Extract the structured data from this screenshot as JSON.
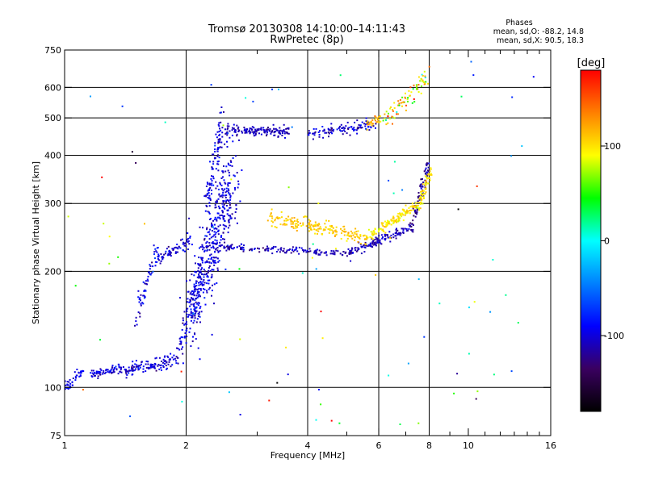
{
  "chart_data": {
    "type": "scatter",
    "title": "Tromsø 20130308 14:10:00–14:11:43",
    "subtitle": "RwPretec (8p)",
    "xlabel": "Frequency [MHz]",
    "ylabel": "Stationary phase Virtual Height [km]",
    "x_scale": "log",
    "y_scale": "log",
    "xlim": [
      1,
      16
    ],
    "ylim": [
      75,
      750
    ],
    "x_ticks": [
      1,
      2,
      4,
      6,
      8,
      10,
      16
    ],
    "x_tick_labels": [
      "1",
      "2",
      "4",
      "6",
      "8",
      "10",
      "16"
    ],
    "x_minor_ticks": [
      3,
      5,
      7,
      9,
      11,
      12,
      13,
      14,
      15
    ],
    "y_ticks": [
      75,
      100,
      200,
      300,
      400,
      500,
      600,
      750
    ],
    "y_tick_labels": [
      "75",
      "100",
      "200",
      "300",
      "400",
      "500",
      "600",
      "750"
    ],
    "x_grid": [
      2,
      4,
      6,
      8
    ],
    "y_grid": [
      100,
      200,
      300,
      400,
      500,
      600
    ],
    "grid": true,
    "phases": {
      "heading": "Phases",
      "line1": "mean, sd,O:  -88.2, 14.8",
      "line2": "mean, sd,X:  90.5, 18.3"
    },
    "colorbar": {
      "label": "[deg]",
      "min": -180,
      "max": 180,
      "ticks": [
        100,
        0,
        -100
      ],
      "tick_labels": [
        "100",
        "0",
        "-100"
      ],
      "colormap": [
        "#000000",
        "#3a0060",
        "#0000ff",
        "#0080ff",
        "#00ffff",
        "#00ff00",
        "#ffff00",
        "#ff8000",
        "#ff0000"
      ]
    },
    "point_size": 2,
    "traces": [
      {
        "x0": 1.0,
        "x1": 1.12,
        "y0": 100,
        "y1": 112,
        "n": 40,
        "spread": 0.02,
        "phase": -95,
        "phase_sd": 10
      },
      {
        "x0": 1.15,
        "x1": 1.4,
        "y0": 108,
        "y1": 112,
        "n": 70,
        "spread": 0.015,
        "phase": -100,
        "phase_sd": 12
      },
      {
        "x0": 1.4,
        "x1": 1.9,
        "y0": 110,
        "y1": 117,
        "n": 120,
        "spread": 0.02,
        "phase": -100,
        "phase_sd": 12
      },
      {
        "x0": 1.5,
        "x1": 1.7,
        "y0": 150,
        "y1": 230,
        "n": 60,
        "spread": 0.03,
        "phase": -95,
        "phase_sd": 12
      },
      {
        "x0": 1.7,
        "x1": 2.05,
        "y0": 215,
        "y1": 240,
        "n": 70,
        "spread": 0.02,
        "phase": -100,
        "phase_sd": 12
      },
      {
        "x0": 1.9,
        "x1": 2.2,
        "y0": 117,
        "y1": 200,
        "n": 100,
        "spread": 0.05,
        "phase": -100,
        "phase_sd": 12
      },
      {
        "x0": 2.05,
        "x1": 2.6,
        "y0": 150,
        "y1": 360,
        "n": 450,
        "spread": 0.11,
        "phase": -100,
        "phase_sd": 12
      },
      {
        "x0": 2.25,
        "x1": 2.45,
        "y0": 300,
        "y1": 480,
        "n": 100,
        "spread": 0.05,
        "phase": -100,
        "phase_sd": 12
      },
      {
        "x0": 2.5,
        "x1": 3.6,
        "y0": 465,
        "y1": 460,
        "n": 150,
        "spread": 0.015,
        "phase": -110,
        "phase_sd": 8
      },
      {
        "x0": 4.0,
        "x1": 5.9,
        "y0": 455,
        "y1": 480,
        "n": 110,
        "spread": 0.015,
        "phase": -105,
        "phase_sd": 15
      },
      {
        "x0": 5.6,
        "x1": 6.1,
        "y0": 480,
        "y1": 500,
        "n": 30,
        "spread": 0.015,
        "phase": 110,
        "phase_sd": 20
      },
      {
        "x0": 6.2,
        "x1": 8.0,
        "y0": 490,
        "y1": 640,
        "n": 80,
        "spread": 0.03,
        "phase": 95,
        "phase_sd": 40
      },
      {
        "x0": 2.4,
        "x1": 5.0,
        "y0": 232,
        "y1": 222,
        "n": 150,
        "spread": 0.01,
        "phase": -110,
        "phase_sd": 10
      },
      {
        "x0": 5.0,
        "x1": 7.2,
        "y0": 222,
        "y1": 260,
        "n": 130,
        "spread": 0.015,
        "phase": -110,
        "phase_sd": 10
      },
      {
        "x0": 7.2,
        "x1": 8.0,
        "y0": 260,
        "y1": 380,
        "n": 80,
        "spread": 0.025,
        "phase": -120,
        "phase_sd": 10
      },
      {
        "x0": 3.2,
        "x1": 5.6,
        "y0": 275,
        "y1": 245,
        "n": 190,
        "spread": 0.02,
        "phase": 108,
        "phase_sd": 8
      },
      {
        "x0": 5.6,
        "x1": 7.6,
        "y0": 245,
        "y1": 300,
        "n": 130,
        "spread": 0.015,
        "phase": 100,
        "phase_sd": 10
      },
      {
        "x0": 7.6,
        "x1": 8.1,
        "y0": 300,
        "y1": 370,
        "n": 60,
        "spread": 0.02,
        "phase": 100,
        "phase_sd": 12
      },
      {
        "x0": 1.0,
        "x1": 15.0,
        "y0": 80,
        "y1": 700,
        "n": 90,
        "spread": 0.0,
        "phase": 0,
        "phase_sd": 100,
        "random": true
      }
    ]
  }
}
